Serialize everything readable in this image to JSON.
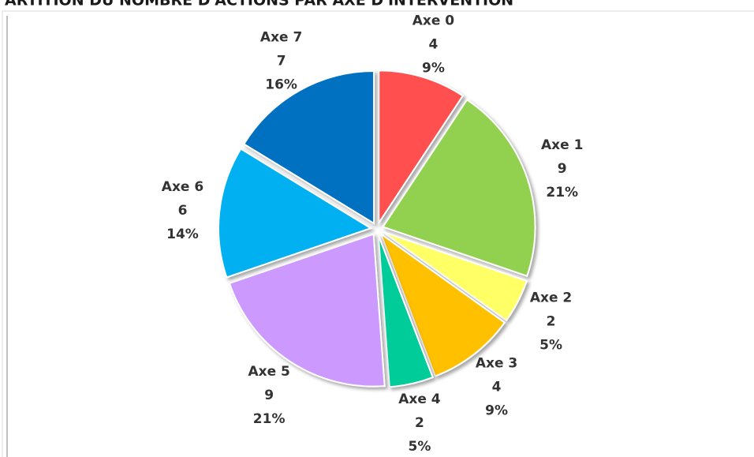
{
  "chart_data": {
    "type": "pie",
    "title": "ARTITION DU NOMBRE D'ACTIONS PAR AXE D'INTERVENTION",
    "categories": [
      "Axe 0",
      "Axe 1",
      "Axe 2",
      "Axe 3",
      "Axe 4",
      "Axe 5",
      "Axe 6",
      "Axe 7"
    ],
    "values": [
      4,
      9,
      2,
      4,
      2,
      9,
      6,
      7
    ],
    "percent_labels": [
      "9%",
      "21%",
      "5%",
      "9%",
      "5%",
      "21%",
      "14%",
      "16%"
    ],
    "colors": [
      "#ff5050",
      "#92d050",
      "#ffff66",
      "#ffc000",
      "#00cc99",
      "#cc99ff",
      "#00b0f0",
      "#0070c0"
    ]
  }
}
